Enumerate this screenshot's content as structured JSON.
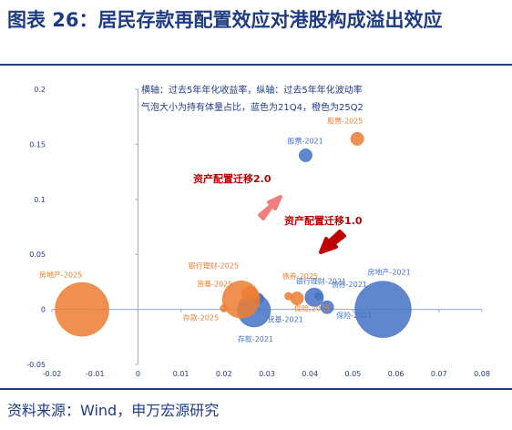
{
  "header": {
    "title": "图表 26：居民存款再配置效应对港股构成溢出效应"
  },
  "footer": {
    "source": "资料来源：Wind，申万宏源研究"
  },
  "chart_data": {
    "type": "scatter",
    "bubble": true,
    "title": "",
    "note_line1": "横轴：过去5年年化收益率，纵轴：过去5年年化波动率",
    "note_line2": "气泡大小为持有体量占比，蓝色为21Q4，橙色为25Q2",
    "xlim": [
      -0.02,
      0.08
    ],
    "ylim": [
      -0.05,
      0.2
    ],
    "x_ticks": [
      "-0.02",
      "-0.01",
      "0",
      "0.01",
      "0.02",
      "0.03",
      "0.04",
      "0.05",
      "0.06",
      "0.07",
      "0.08"
    ],
    "y_ticks": [
      "-0.05",
      "0",
      "0.05",
      "0.1",
      "0.15",
      "0.2"
    ],
    "colors": {
      "blue": "#4472c4",
      "orange": "#ed7d31",
      "annotation_red": "#c00000"
    },
    "series": [
      {
        "color": "#4472c4",
        "points": [
          {
            "label": "股票-2021",
            "x": 0.039,
            "y": 0.14,
            "size": 0.03
          },
          {
            "label": "银行理财-2021",
            "x": 0.041,
            "y": 0.011,
            "size": 0.06
          },
          {
            "label": "债券-2021",
            "x": 0.042,
            "y": 0.012,
            "size": 0.01
          },
          {
            "label": "保险-2021",
            "x": 0.044,
            "y": 0.002,
            "size": 0.03
          },
          {
            "label": "房地产-2021",
            "x": 0.057,
            "y": 0.0,
            "size": 0.55
          },
          {
            "label": "存款-2021",
            "x": 0.027,
            "y": -0.001,
            "size": 0.19
          },
          {
            "label": "货基-2021",
            "x": 0.028,
            "y": 0.01,
            "size": 0.02
          }
        ]
      },
      {
        "color": "#ed7d31",
        "points": [
          {
            "label": "股票-2025",
            "x": 0.051,
            "y": 0.155,
            "size": 0.03
          },
          {
            "label": "房地产-2025",
            "x": -0.013,
            "y": 0.0,
            "size": 0.5
          },
          {
            "label": "银行理财-2025",
            "x": 0.024,
            "y": 0.009,
            "size": 0.24
          },
          {
            "label": "货基-2025",
            "x": 0.026,
            "y": 0.014,
            "size": 0.04
          },
          {
            "label": "存款-2025",
            "x": 0.02,
            "y": 0.001,
            "size": 0.01
          },
          {
            "label": "债券-2025",
            "x": 0.035,
            "y": 0.012,
            "size": 0.01
          },
          {
            "label": "保险-2025",
            "x": 0.037,
            "y": 0.01,
            "size": 0.03
          }
        ]
      }
    ],
    "annotations": [
      {
        "text": "资产配置迁移2.0",
        "arrow_color": "#f08080"
      },
      {
        "text": "资产配置迁移1.0",
        "arrow_color": "#c00000"
      }
    ]
  }
}
